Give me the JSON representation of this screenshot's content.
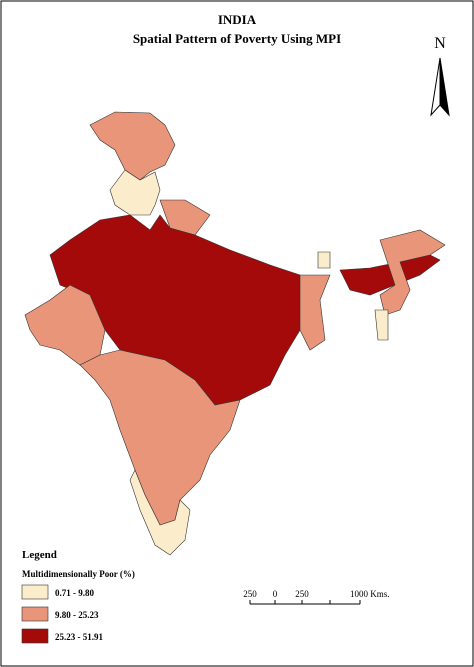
{
  "header": {
    "title": "INDIA",
    "subtitle": "Spatial Pattern of Poverty Using MPI"
  },
  "north_arrow": {
    "label": "N"
  },
  "legend": {
    "title": "Legend",
    "subtitle": "Multidimensionally Poor (%)",
    "classes": [
      {
        "label": "0.71 - 9.80",
        "color": "#fbeccb"
      },
      {
        "label": "9.80 - 25.23",
        "color": "#e8957a"
      },
      {
        "label": "25.23 - 51.91",
        "color": "#a50a0a"
      }
    ]
  },
  "scale_bar": {
    "labels": [
      "250",
      "0",
      "250",
      "1000 Kms."
    ]
  }
}
